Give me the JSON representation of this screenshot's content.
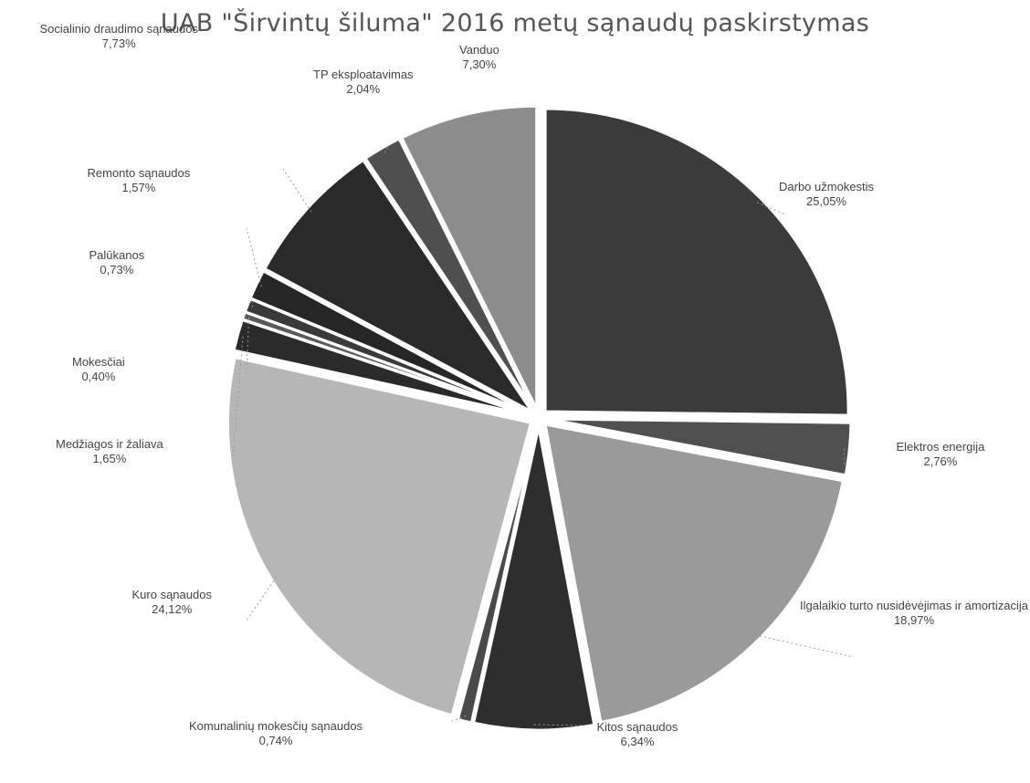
{
  "chart_data": {
    "type": "pie",
    "title": "UAB \"Širvintų šiluma\" 2016 metų sąnaudų paskirstymas",
    "slices": [
      {
        "label": "Darbo užmokestis",
        "value": 25.05,
        "display": "25,05%",
        "color": "#3b3b3b"
      },
      {
        "label": "Elektros energija",
        "value": 2.76,
        "display": "2,76%",
        "color": "#505050"
      },
      {
        "label": "Ilgalaikio turto nusidėvėjimas ir amortizacija",
        "value": 18.97,
        "display": "18,97%",
        "color": "#9a9a9a"
      },
      {
        "label": "Kitos sąnaudos",
        "value": 6.34,
        "display": "6,34%",
        "color": "#2e2e2e"
      },
      {
        "label": "Komunalinių mokesčių sąnaudos",
        "value": 0.74,
        "display": "0,74%",
        "color": "#4a4a4a"
      },
      {
        "label": "Kuro sąnaudos",
        "value": 24.12,
        "display": "24,12%",
        "color": "#b6b6b6"
      },
      {
        "label": "Medžiagos ir žaliava",
        "value": 1.65,
        "display": "1,65%",
        "color": "#2b2b2b"
      },
      {
        "label": "Mokesčiai",
        "value": 0.4,
        "display": "0,40%",
        "color": "#5a5a5a"
      },
      {
        "label": "Palūkanos",
        "value": 0.73,
        "display": "0,73%",
        "color": "#3a3a3a"
      },
      {
        "label": "Remonto sąnaudos",
        "value": 1.57,
        "display": "1,57%",
        "color": "#262626"
      },
      {
        "label": "Socialinio draudimo sąnaudos",
        "value": 7.73,
        "display": "7,73%",
        "color": "#2a2a2a"
      },
      {
        "label": "TP eksploatavimas",
        "value": 2.04,
        "display": "2,04%",
        "color": "#4f4f4f"
      },
      {
        "label": "Vanduo",
        "value": 7.3,
        "display": "7,30%",
        "color": "#8c8c8c"
      }
    ],
    "legend": "none"
  }
}
